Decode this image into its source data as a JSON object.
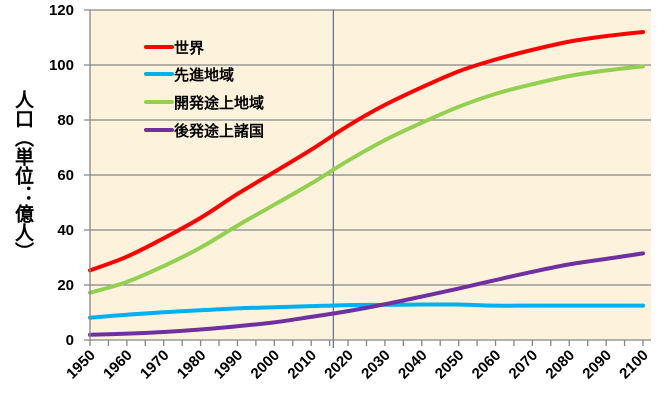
{
  "chart_data": {
    "type": "line",
    "title": "",
    "xlabel": "",
    "ylabel": "人口（単位：億人）",
    "xlim": [
      1950,
      2100
    ],
    "ylim": [
      0,
      120
    ],
    "yticks": [
      "0",
      "20",
      "40",
      "60",
      "80",
      "100",
      "120"
    ],
    "xticks": [
      "1950",
      "1960",
      "1970",
      "1980",
      "1990",
      "2000",
      "2010",
      "2020",
      "2030",
      "2040",
      "2050",
      "2060",
      "2070",
      "2080",
      "2090",
      "2100"
    ],
    "grid": "horizontal",
    "reference_line_year": 2016,
    "legend_position": "top-left",
    "background_color": "#fdf3dc",
    "x": [
      1950,
      1960,
      1970,
      1980,
      1990,
      2000,
      2010,
      2020,
      2030,
      2040,
      2050,
      2060,
      2070,
      2080,
      2090,
      2100
    ],
    "series": [
      {
        "name": "世界",
        "color": "#ff0000",
        "values": [
          25.3,
          30.3,
          37.0,
          44.4,
          53.1,
          61.1,
          69.2,
          77.9,
          85.5,
          91.9,
          97.7,
          102.0,
          105.5,
          108.5,
          110.5,
          112.0
        ]
      },
      {
        "name": "先進地域",
        "color": "#00b0f0",
        "values": [
          8.1,
          9.2,
          10.1,
          10.8,
          11.5,
          11.9,
          12.3,
          12.7,
          12.8,
          12.9,
          12.9,
          12.5,
          12.5,
          12.5,
          12.5,
          12.5
        ]
      },
      {
        "name": "開発途上地域",
        "color": "#92d050",
        "values": [
          17.2,
          21.1,
          26.9,
          33.6,
          41.6,
          49.2,
          56.9,
          65.2,
          72.7,
          79.0,
          84.8,
          89.5,
          93.0,
          96.0,
          98.0,
          99.5
        ]
      },
      {
        "name": "後発途上諸国",
        "color": "#7030a0",
        "values": [
          1.9,
          2.3,
          2.9,
          3.8,
          5.0,
          6.4,
          8.4,
          10.5,
          13.0,
          15.8,
          18.7,
          21.8,
          24.8,
          27.5,
          29.5,
          31.5
        ]
      }
    ]
  }
}
